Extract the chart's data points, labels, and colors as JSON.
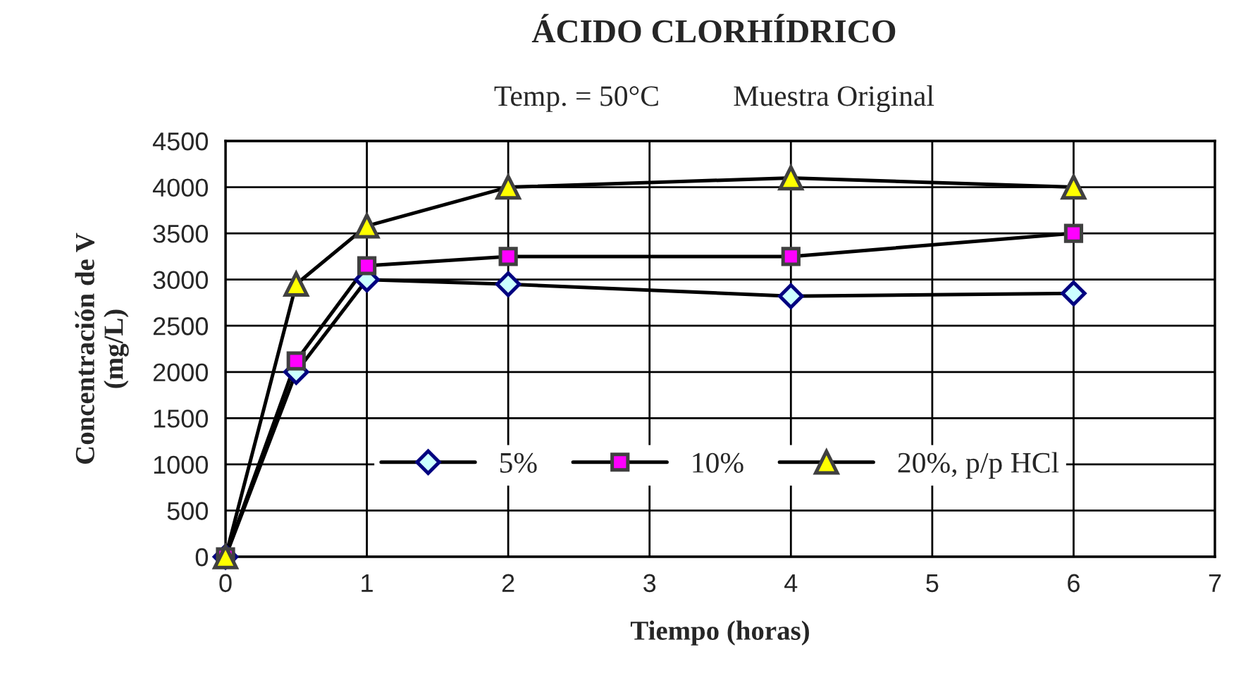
{
  "chart_data": {
    "type": "line",
    "title": "ÁCIDO CLORHÍDRICO",
    "subtitle": "Temp. = 50°C          Muestra Original",
    "xlabel": "Tiempo (horas)",
    "ylabel": "Concentración de V\n(mg/L)",
    "x": [
      0,
      0.5,
      1,
      2,
      4,
      6
    ],
    "series": [
      {
        "name": "5%",
        "color": "#ccffff",
        "marker": "diamond",
        "values": [
          0,
          2000,
          3000,
          2950,
          2820,
          2850
        ]
      },
      {
        "name": "10%",
        "color": "#ff00ff",
        "marker": "square",
        "values": [
          0,
          2120,
          3150,
          3250,
          3250,
          3500
        ]
      },
      {
        "name": "20%, p/p HCl",
        "color": "#ffff00",
        "marker": "triangle",
        "values": [
          0,
          2950,
          3580,
          4000,
          4100,
          4000
        ]
      }
    ],
    "xlim": [
      0,
      7
    ],
    "xticks": [
      0,
      1,
      2,
      3,
      4,
      5,
      6,
      7
    ],
    "ylim": [
      0,
      4500
    ],
    "yticks": [
      0,
      500,
      1000,
      1500,
      2000,
      2500,
      3000,
      3500,
      4000,
      4500
    ],
    "grid": true,
    "legend": "center",
    "line_style": "solid"
  }
}
